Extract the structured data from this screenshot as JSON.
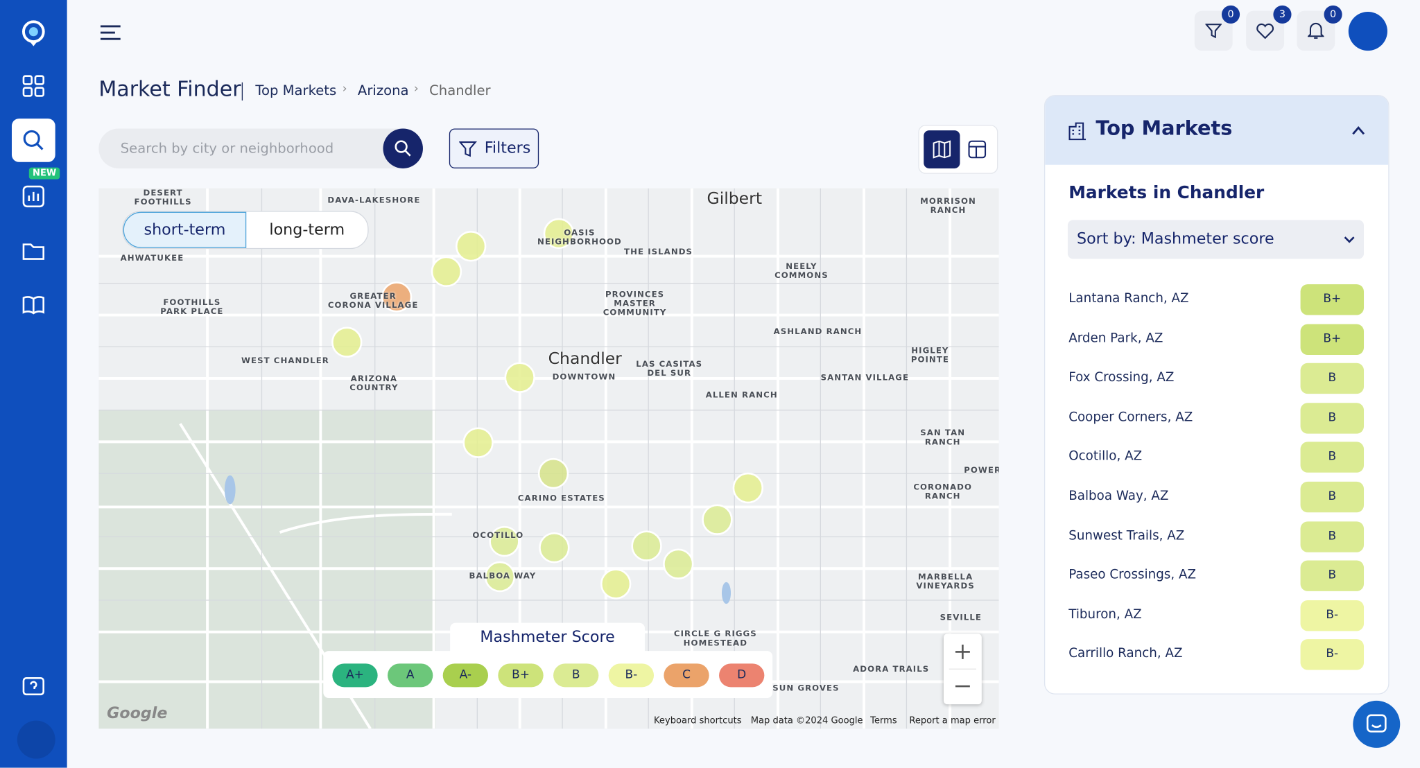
{
  "sidebar": {
    "new_badge": "NEW"
  },
  "header": {
    "badges": [
      0,
      3,
      0
    ]
  },
  "breadcrumb": {
    "title": "Market Finder",
    "items": [
      "Top Markets",
      "Arizona",
      "Chandler"
    ]
  },
  "search": {
    "placeholder": "Search by city or neighborhood"
  },
  "filters": "Filters",
  "map": {
    "toggle": [
      "short-term",
      "long-term"
    ],
    "labels": [
      "Gilbert",
      "DAVA-LAKESHORE",
      "DESERT\nFOOTHILLS",
      "MORRISON\nRANCH",
      "AHWATUKEE",
      "OASIS\nNEIGHBORHOOD",
      "THE ISLANDS",
      "NEELY\nCOMMONS",
      "FOOTHILLS\nPARK PLACE",
      "GREATER\nCORONA VILLAGE",
      "PROVINCES\nMASTER\nCOMMUNITY",
      "ASHLAND RANCH",
      "Chandler",
      "DOWNTOWN",
      "WEST CHANDLER",
      "HIGLEY POINTE",
      "LAS CASITAS\nDEL SUR",
      "SANTAN VILLAGE",
      "ARIZONA\nCOUNTRY",
      "ALLEN RANCH",
      "SAN TAN RANCH",
      "POWER",
      "CORONADO\nRANCH",
      "CARINO ESTATES",
      "OCOTILLO",
      "BALBOA WAY",
      "MARBELLA\nVINEYARDS",
      "SEVILLE",
      "CIRCLE G RIGGS\nHOMESTEAD",
      "ADORA TRAILS",
      "SUN GROVES"
    ],
    "legend": {
      "title": "Mashmeter Score",
      "grades": [
        "A+",
        "A",
        "A-",
        "B+",
        "B",
        "B-",
        "C",
        "D"
      ],
      "colors": [
        "#2bb37f",
        "#6cc77a",
        "#a9cf4e",
        "#cde37a",
        "#dbeb93",
        "#eef5a3",
        "#eba36a",
        "#ec8370"
      ]
    },
    "logo": "Google",
    "footer": [
      "Keyboard shortcuts",
      "Map data ©2024 Google",
      "Terms",
      "Report a map error"
    ]
  },
  "panel": {
    "title": "Top Markets",
    "subtitle": "Markets in Chandler",
    "sort": "Sort by: Mashmeter score",
    "markets": [
      {
        "name": "Lantana Ranch, AZ",
        "grade": "B+"
      },
      {
        "name": "Arden Park, AZ",
        "grade": "B+"
      },
      {
        "name": "Fox Crossing, AZ",
        "grade": "B"
      },
      {
        "name": "Cooper Corners, AZ",
        "grade": "B"
      },
      {
        "name": "Ocotillo, AZ",
        "grade": "B"
      },
      {
        "name": "Balboa Way, AZ",
        "grade": "B"
      },
      {
        "name": "Sunwest Trails, AZ",
        "grade": "B"
      },
      {
        "name": "Paseo Crossings, AZ",
        "grade": "B"
      },
      {
        "name": "Tiburon, AZ",
        "grade": "B-"
      },
      {
        "name": "Carrillo Ranch, AZ",
        "grade": "B-"
      }
    ]
  }
}
